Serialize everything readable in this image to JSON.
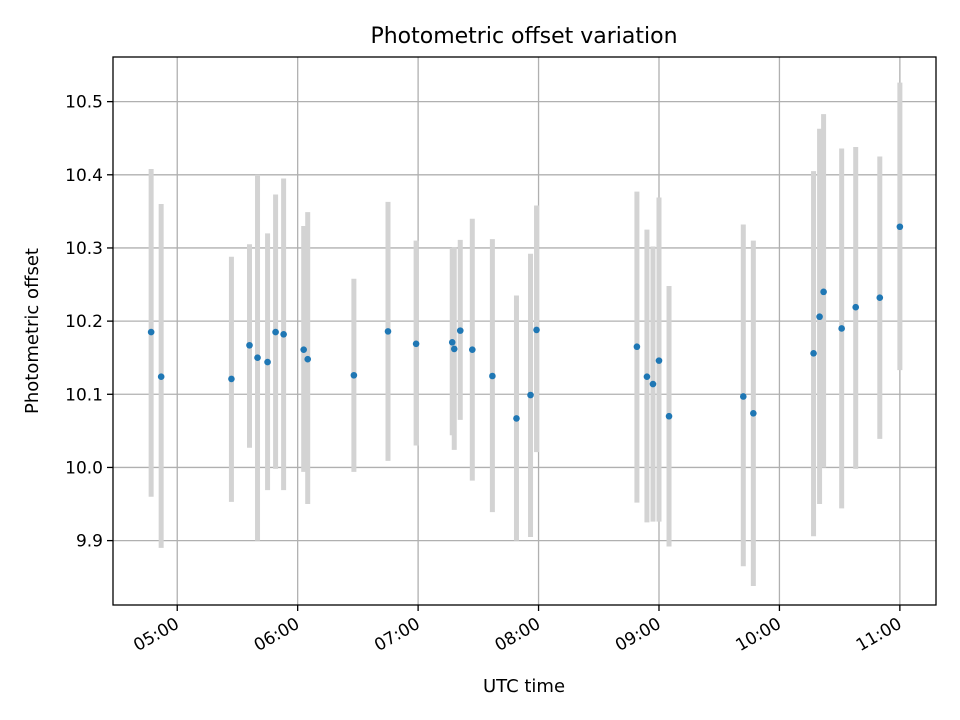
{
  "chart_data": {
    "type": "scatter",
    "title": "Photometric offset variation",
    "xlabel": "UTC time",
    "ylabel": "Photometric offset",
    "x_ticks": [
      "05:00",
      "06:00",
      "07:00",
      "08:00",
      "09:00",
      "10:00",
      "11:00"
    ],
    "y_ticks": [
      "9.9",
      "10.0",
      "10.1",
      "10.2",
      "10.3",
      "10.4",
      "10.5"
    ],
    "xlim": [
      "04:28",
      "11:18"
    ],
    "ylim": [
      9.812,
      10.561
    ],
    "grid": true,
    "colors": {
      "points": "#1f77b4",
      "error_bars": "#d3d3d3",
      "grid": "#b0b0b0"
    },
    "points": [
      {
        "t": "04:47",
        "y": 10.185,
        "ylo": 9.96,
        "yhi": 10.408
      },
      {
        "t": "04:52",
        "y": 10.124,
        "ylo": 9.89,
        "yhi": 10.36
      },
      {
        "t": "05:27",
        "y": 10.121,
        "ylo": 9.953,
        "yhi": 10.288
      },
      {
        "t": "05:36",
        "y": 10.167,
        "ylo": 10.027,
        "yhi": 10.305
      },
      {
        "t": "05:40",
        "y": 10.15,
        "ylo": 9.9,
        "yhi": 10.4
      },
      {
        "t": "05:45",
        "y": 10.144,
        "ylo": 9.969,
        "yhi": 10.32
      },
      {
        "t": "05:49",
        "y": 10.185,
        "ylo": 9.998,
        "yhi": 10.373
      },
      {
        "t": "05:53",
        "y": 10.182,
        "ylo": 9.969,
        "yhi": 10.395
      },
      {
        "t": "06:03",
        "y": 10.161,
        "ylo": 9.994,
        "yhi": 10.33
      },
      {
        "t": "06:05",
        "y": 10.148,
        "ylo": 9.95,
        "yhi": 10.349
      },
      {
        "t": "06:28",
        "y": 10.126,
        "ylo": 9.994,
        "yhi": 10.258
      },
      {
        "t": "06:45",
        "y": 10.186,
        "ylo": 10.009,
        "yhi": 10.363
      },
      {
        "t": "06:59",
        "y": 10.169,
        "ylo": 10.03,
        "yhi": 10.31
      },
      {
        "t": "07:17",
        "y": 10.171,
        "ylo": 10.044,
        "yhi": 10.3
      },
      {
        "t": "07:18",
        "y": 10.162,
        "ylo": 10.024,
        "yhi": 10.301
      },
      {
        "t": "07:21",
        "y": 10.187,
        "ylo": 10.065,
        "yhi": 10.311
      },
      {
        "t": "07:27",
        "y": 10.161,
        "ylo": 9.982,
        "yhi": 10.34
      },
      {
        "t": "07:37",
        "y": 10.125,
        "ylo": 9.939,
        "yhi": 10.312
      },
      {
        "t": "07:49",
        "y": 10.067,
        "ylo": 9.9,
        "yhi": 10.235
      },
      {
        "t": "07:56",
        "y": 10.099,
        "ylo": 9.905,
        "yhi": 10.292
      },
      {
        "t": "07:59",
        "y": 10.188,
        "ylo": 10.021,
        "yhi": 10.358
      },
      {
        "t": "08:49",
        "y": 10.165,
        "ylo": 9.952,
        "yhi": 10.377
      },
      {
        "t": "08:54",
        "y": 10.124,
        "ylo": 9.925,
        "yhi": 10.325
      },
      {
        "t": "08:57",
        "y": 10.114,
        "ylo": 9.926,
        "yhi": 10.302
      },
      {
        "t": "09:00",
        "y": 10.146,
        "ylo": 9.926,
        "yhi": 10.369
      },
      {
        "t": "09:05",
        "y": 10.07,
        "ylo": 9.892,
        "yhi": 10.248
      },
      {
        "t": "09:42",
        "y": 10.097,
        "ylo": 9.865,
        "yhi": 10.332
      },
      {
        "t": "09:47",
        "y": 10.074,
        "ylo": 9.838,
        "yhi": 10.31
      },
      {
        "t": "10:17",
        "y": 10.156,
        "ylo": 9.906,
        "yhi": 10.405
      },
      {
        "t": "10:20",
        "y": 10.206,
        "ylo": 9.95,
        "yhi": 10.463
      },
      {
        "t": "10:22",
        "y": 10.24,
        "ylo": 10.0,
        "yhi": 10.483
      },
      {
        "t": "10:31",
        "y": 10.19,
        "ylo": 9.944,
        "yhi": 10.436
      },
      {
        "t": "10:38",
        "y": 10.219,
        "ylo": 9.998,
        "yhi": 10.438
      },
      {
        "t": "10:50",
        "y": 10.232,
        "ylo": 10.039,
        "yhi": 10.425
      },
      {
        "t": "11:00",
        "y": 10.329,
        "ylo": 10.133,
        "yhi": 10.526
      }
    ]
  }
}
